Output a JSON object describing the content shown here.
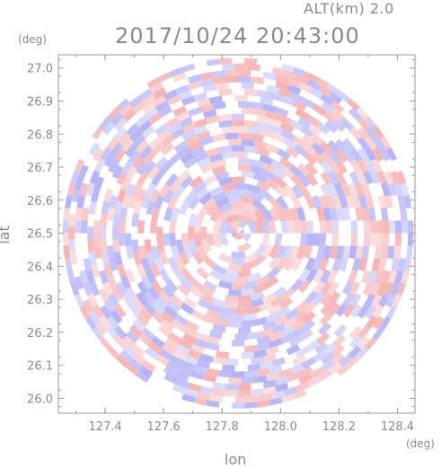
{
  "header": {
    "altitude_label": "ALT(km) 2.0",
    "timestamp": "2017/10/24 20:43:00"
  },
  "axes": {
    "x_unit": "(deg)",
    "y_unit": "(deg)",
    "x_label": "lon",
    "y_label": "lat"
  },
  "chart_data": {
    "type": "heatmap",
    "title": "2017/10/24 20:43:00",
    "subtitle": "ALT(km) 2.0",
    "xlabel": "lon",
    "ylabel": "lat",
    "x_unit": "(deg)",
    "y_unit": "(deg)",
    "xlim": [
      127.24,
      128.46
    ],
    "ylim": [
      25.955,
      27.04
    ],
    "x_ticks": [
      127.4,
      127.6,
      127.8,
      128.0,
      128.2,
      128.4
    ],
    "x_tick_labels": [
      "127.4",
      "127.6",
      "127.8",
      "128.0",
      "128.2",
      "128.4"
    ],
    "y_ticks": [
      26.0,
      26.1,
      26.2,
      26.3,
      26.4,
      26.5,
      26.6,
      26.7,
      26.8,
      26.9,
      27.0
    ],
    "y_tick_labels": [
      "26.0",
      "26.1",
      "26.2",
      "26.3",
      "26.4",
      "26.5",
      "26.6",
      "26.7",
      "26.8",
      "26.9",
      "27.0"
    ],
    "radar_center": {
      "lon": 127.855,
      "lat": 26.5
    },
    "radar_extent_deg": {
      "lon": 0.6,
      "lat": 0.535
    },
    "colormap": {
      "negative": "#8080f0",
      "zero": "#ffffff",
      "positive": "#f08080"
    },
    "grid": false
  }
}
